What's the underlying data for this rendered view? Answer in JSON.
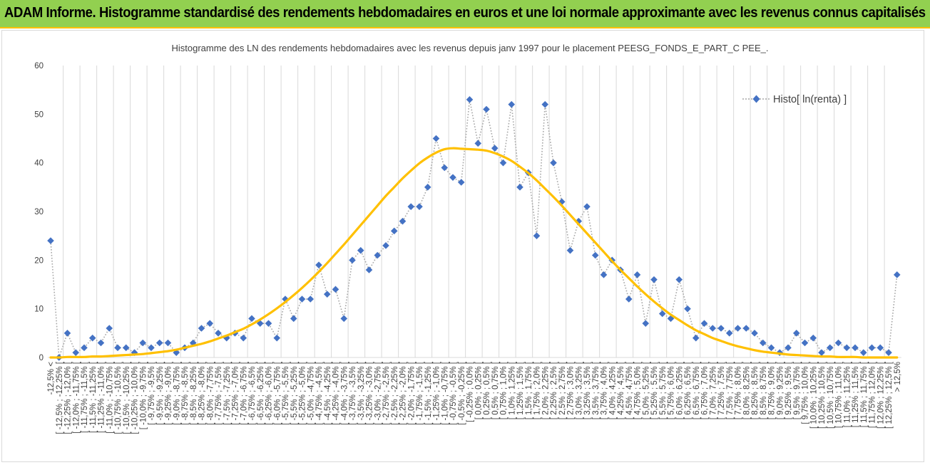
{
  "banner": {
    "title": "ADAM Informe. Histogramme standardisé des rendements hebdomadaires en euros et une loi normale approximante avec les revenus connus capitalisés"
  },
  "colors": {
    "banner_bg": "#92d050",
    "banner_border": "#ffc000",
    "histo_marker": "#4472c4",
    "histo_line": "#a6a6a6",
    "normal_curve": "#ffc000",
    "grid": "#d9d9d9"
  },
  "chart_data": {
    "type": "line",
    "title": "Histogramme des LN des rendements hebdomadaires avec les revenus depuis janv 1997 pour le placement PEESG_FONDS_E_PART_C PEE_.",
    "xlabel": "",
    "ylabel": "",
    "ylim": [
      0,
      60
    ],
    "yticks": [
      0,
      10,
      20,
      30,
      40,
      50,
      60
    ],
    "grid": "vertical",
    "legend": "top-right",
    "categories": [
      "-12,5% <",
      "[ -12,5% ; -12,25% [",
      "[ -12,25% ; -12,0% [",
      "[ -12,0% ; -11,75% [",
      "[ -11,75% ; -11,5% [",
      "[ -11,5% ; -11,25% [",
      "[ -11,25% ; -11,0% [",
      "[ -11,0% ; -10,75% [",
      "[ -10,75% ; -10,5% [",
      "[ -10,5% ; -10,25% [",
      "[ -10,25% ; -10,0% [",
      "[ -10,0% ; -9,75% [",
      "[ -9,75% ; -9,5% [",
      "[ -9,5% ; -9,25% [",
      "[ -9,25% ; -9,0% [",
      "[ -9,0% ; -8,75% [",
      "[ -8,75% ; -8,5% [",
      "[ -8,5% ; -8,25% [",
      "[ -8,25% ; -8,0% [",
      "[ -8,0% ; -7,75% [",
      "[ -7,75% ; -7,5% [",
      "[ -7,5% ; -7,25% [",
      "[ -7,25% ; -7,0% [",
      "[ -7,0% ; -6,75% [",
      "[ -6,75% ; -6,5% [",
      "[ -6,5% ; -6,25% [",
      "[ -6,25% ; -6,0% [",
      "[ -6,0% ; -5,75% [",
      "[ -5,75% ; -5,5% [",
      "[ -5,5% ; -5,25% [",
      "[ -5,25% ; -5,0% [",
      "[ -5,0% ; -4,75% [",
      "[ -4,75% ; -4,5% [",
      "[ -4,5% ; -4,25% [",
      "[ -4,25% ; -4,0% [",
      "[ -4,0% ; -3,75% [",
      "[ -3,75% ; -3,5% [",
      "[ -3,5% ; -3,25% [",
      "[ -3,25% ; -3,0% [",
      "[ -3,0% ; -2,75% [",
      "[ -2,75% ; -2,5% [",
      "[ -2,5% ; -2,25% [",
      "[ -2,25% ; -2,0% [",
      "[ -2,0% ; -1,75% [",
      "[ -1,75% ; -1,5% [",
      "[ -1,5% ; -1,25% [",
      "[ -1,25% ; -1,0% [",
      "[ -1,0% ; -0,75% [",
      "[ -0,75% ; -0,5% [",
      "[ -0,5% ; -0,25% [",
      "[ -0,25% ; 0,0% [",
      "[ 0,0% ; 0,25% [",
      "[ 0,25% ; 0,5% [",
      "[ 0,5% ; 0,75% [",
      "[ 0,75% ; 1,0% [",
      "[ 1,0% ; 1,25% [",
      "[ 1,25% ; 1,5% [",
      "[ 1,5% ; 1,75% [",
      "[ 1,75% ; 2,0% [",
      "[ 2,0% ; 2,25% [",
      "[ 2,25% ; 2,5% [",
      "[ 2,5% ; 2,75% [",
      "[ 2,75% ; 3,0% [",
      "[ 3,0% ; 3,25% [",
      "[ 3,25% ; 3,5% [",
      "[ 3,5% ; 3,75% [",
      "[ 3,75% ; 4,0% [",
      "[ 4,0% ; 4,25% [",
      "[ 4,25% ; 4,5% [",
      "[ 4,5% ; 4,75% [",
      "[ 4,75% ; 5,0% [",
      "[ 5,0% ; 5,25% [",
      "[ 5,25% ; 5,5% [",
      "[ 5,5% ; 5,75% [",
      "[ 5,75% ; 6,0% [",
      "[ 6,0% ; 6,25% [",
      "[ 6,25% ; 6,5% [",
      "[ 6,5% ; 6,75% [",
      "[ 6,75% ; 7,0% [",
      "[ 7,0% ; 7,25% [",
      "[ 7,25% ; 7,5% [",
      "[ 7,5% ; 7,75% [",
      "[ 7,75% ; 8,0% [",
      "[ 8,0% ; 8,25% [",
      "[ 8,25% ; 8,5% [",
      "[ 8,5% ; 8,75% [",
      "[ 8,75% ; 9,0% [",
      "[ 9,0% ; 9,25% [",
      "[ 9,25% ; 9,5% [",
      "[ 9,5% ; 9,75% [",
      "[ 9,75% ; 10,0% [",
      "[ 10,0% ; 10,25% [",
      "[ 10,25% ; 10,5% [",
      "[ 10,5% ; 10,75% [",
      "[ 10,75% ; 11,0% [",
      "[ 11,0% ; 11,25% [",
      "[ 11,25% ; 11,5% [",
      "[ 11,5% ; 11,75% [",
      "[ 11,75% ; 12,0% [",
      "[ 12,0% ; 12,25% [",
      "[ 12,25% ; 12,5% [",
      "> 12,5%"
    ],
    "series": [
      {
        "name": "Histo[ ln(renta) ]",
        "kind": "markers-dotted",
        "values": [
          24,
          0,
          5,
          1,
          2,
          4,
          3,
          6,
          2,
          2,
          1,
          3,
          2,
          3,
          3,
          1,
          2,
          3,
          6,
          7,
          5,
          4,
          5,
          4,
          8,
          7,
          7,
          4,
          12,
          8,
          12,
          12,
          19,
          13,
          14,
          8,
          20,
          22,
          18,
          21,
          23,
          26,
          28,
          31,
          31,
          35,
          45,
          39,
          37,
          36,
          53,
          44,
          51,
          43,
          40,
          52,
          35,
          38,
          25,
          52,
          40,
          32,
          22,
          28,
          31,
          21,
          17,
          20,
          18,
          12,
          17,
          7,
          16,
          9,
          8,
          16,
          10,
          4,
          7,
          6,
          6,
          5,
          6,
          6,
          5,
          3,
          2,
          1,
          2,
          5,
          3,
          4,
          1,
          2,
          3,
          2,
          2,
          1,
          2,
          2,
          1,
          17
        ]
      },
      {
        "kind": "smooth-line",
        "values": [
          0,
          0,
          0.1,
          0.1,
          0.1,
          0.2,
          0.2,
          0.3,
          0.4,
          0.5,
          0.6,
          0.7,
          0.9,
          1.1,
          1.3,
          1.6,
          2.0,
          2.4,
          2.8,
          3.3,
          3.9,
          4.5,
          5.2,
          5.9,
          6.8,
          7.8,
          8.9,
          10.1,
          11.4,
          12.8,
          14.3,
          15.9,
          17.6,
          19.4,
          21.3,
          23.2,
          25.2,
          27.2,
          29.2,
          31.2,
          33.2,
          35.0,
          36.8,
          38.4,
          39.9,
          41.1,
          42.1,
          42.8,
          43.0,
          42.9,
          42.8,
          42.7,
          42.5,
          42.0,
          41.3,
          40.4,
          39.2,
          37.9,
          36.4,
          34.7,
          33.0,
          31.2,
          29.3,
          27.4,
          25.5,
          23.6,
          21.7,
          19.8,
          18.0,
          16.3,
          14.6,
          13.0,
          11.5,
          10.1,
          8.8,
          7.7,
          6.6,
          5.6,
          4.8,
          4.0,
          3.4,
          2.8,
          2.3,
          1.9,
          1.5,
          1.2,
          1.0,
          0.8,
          0.6,
          0.5,
          0.4,
          0.3,
          0.2,
          0.2,
          0.1,
          0.1,
          0.1,
          0,
          0,
          0,
          0,
          0
        ]
      }
    ]
  }
}
